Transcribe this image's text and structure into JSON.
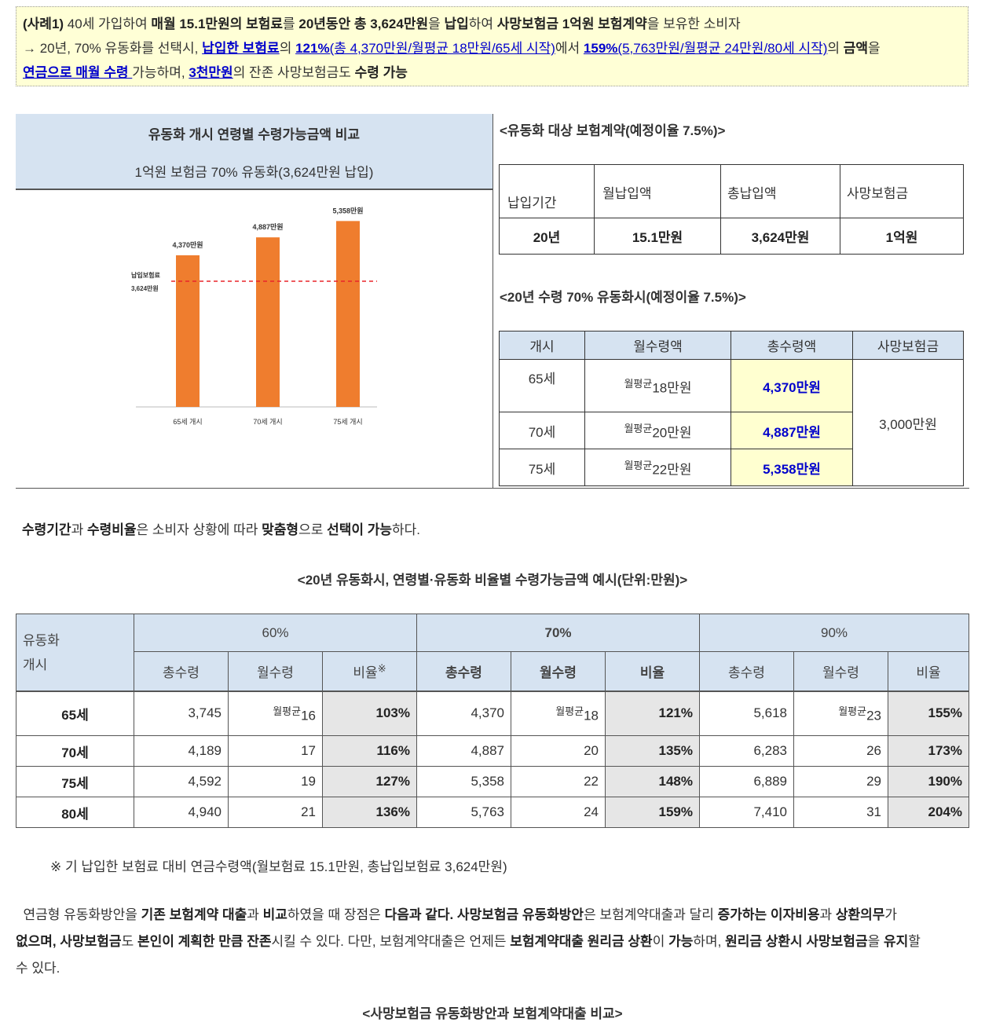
{
  "box": {
    "line1_tag": "(사례1)",
    "line1_a": " 40세 가입하여 ",
    "line1_b": "매월 15.1만원의 보험료",
    "line1_c": "를 ",
    "line1_d": "20년동안 총 3,624만원",
    "line1_e": "을 ",
    "line1_f": "납입",
    "line1_g": "하여 ",
    "line1_h": "사망보험금 1억원 보험계약",
    "line1_i": "을 보유한 소비자",
    "line2_a": "→ 20년, 70% 유동화를 선택시, ",
    "line2_b": "납입한 보험료",
    "line2_c": "의 ",
    "line2_d": "121%",
    "line2_e": "(총 4,370만원/월평균 18만원/65세 시작)",
    "line2_f": "에서 ",
    "line2_g": "159%",
    "line2_h": "(5,763만원/월평균 24만원/80세 시작)",
    "line2_i": "의 ",
    "line2_j": "금액",
    "line2_k": "을",
    "line3_a": "연금으로 매월 수령 ",
    "line3_b": "가능하며, ",
    "line3_c": "3천만원",
    "line3_d": "의 잔존 사망보험금도 ",
    "line3_e": "수령 가능"
  },
  "left_panel": {
    "title": "유동화 개시 연령별 수령가능금액 비교",
    "subtitle": "1억원 보험금 70% 유동화(3,624만원 납입)"
  },
  "chart_data": {
    "type": "bar",
    "categories": [
      "65세 개시",
      "70세 개시",
      "75세 개시"
    ],
    "values": [
      4370,
      4887,
      5358
    ],
    "value_labels": [
      "4,370만원",
      "4,887만원",
      "5,358만원"
    ],
    "reference_line": {
      "value": 3624,
      "label_line1": "납입보험료",
      "label_line2": "3,624만원",
      "color": "#e8252a"
    },
    "bar_color": "#ef7d2e",
    "ylim": [
      0,
      6000
    ]
  },
  "right_panel": {
    "title1": "<유동화 대상 보험계약(예정이율 7.5%)>",
    "t1_headers": [
      "납입기간",
      "월납입액",
      "총납입액",
      "사망보험금"
    ],
    "t1_values": [
      "20년",
      "15.1만원",
      "3,624만원",
      "1억원"
    ],
    "title2": "<20년 수령 70% 유동화시(예정이율 7.5%)>",
    "t2_headers": [
      "개시",
      "월수령액",
      "총수령액",
      "사망보험금"
    ],
    "t2_rows": [
      {
        "age": "65세",
        "prefix": "월평균",
        "monthly": "18만원",
        "total": "4,370만원"
      },
      {
        "age": "70세",
        "prefix": "월평균",
        "monthly": "20만원",
        "total": "4,887만원"
      },
      {
        "age": "75세",
        "prefix": "월평균",
        "monthly": "22만원",
        "total": "5,358만원"
      }
    ],
    "t2_death": "3,000만원"
  },
  "para1": {
    "a": "수령기간",
    "b": "과 ",
    "c": "수령비율",
    "d": "은 소비자 상황에 따라 ",
    "e": "맞춤형",
    "f": "으로 ",
    "g": "선택이 가능",
    "h": "하다."
  },
  "table_title": "<20년 유동화시, 연령별·유동화 비율별 수령가능금액 예시(단위:만원)>",
  "big_table": {
    "corner_line1": "유동화",
    "corner_line2": "개시",
    "groups": [
      "60%",
      "70%",
      "90%"
    ],
    "sub": [
      "총수령",
      "월수령",
      "비율",
      "총수령",
      "월수령",
      "비율",
      "총수령",
      "월수령",
      "비율"
    ],
    "sub_mark": "※",
    "prefix": "월평균",
    "rows": [
      {
        "age": "65세",
        "c": [
          "3,745",
          "16",
          "103%",
          "4,370",
          "18",
          "121%",
          "5,618",
          "23",
          "155%"
        ]
      },
      {
        "age": "70세",
        "c": [
          "4,189",
          "17",
          "116%",
          "4,887",
          "20",
          "135%",
          "6,283",
          "26",
          "173%"
        ]
      },
      {
        "age": "75세",
        "c": [
          "4,592",
          "19",
          "127%",
          "5,358",
          "22",
          "148%",
          "6,889",
          "29",
          "190%"
        ]
      },
      {
        "age": "80세",
        "c": [
          "4,940",
          "21",
          "136%",
          "5,763",
          "24",
          "159%",
          "7,410",
          "31",
          "204%"
        ]
      }
    ]
  },
  "note": "※ 기 납입한 보험료 대비 연금수령액(월보험료 15.1만원, 총납입보험료 3,624만원)",
  "para2": {
    "a": "연금형 유동화방안을 ",
    "b": "기존 보험계약 대출",
    "c": "과 ",
    "d": "비교",
    "e": "하였을 때 장점은 ",
    "f": "다음과 같다. 사망보험금 유동화방안",
    "g": "은 보험계약대출과 달리 ",
    "h": "증가하는 이자비용",
    "i": "과 ",
    "j": "상환의무",
    "k": "가",
    "l": "없으며, 사망보험금",
    "m": "도 ",
    "n": "본인이 계획한 만큼 잔존",
    "o": "시킬 수 있다. 다만, 보험계약대출은 언제든 ",
    "p": "보험계약대출 원리금 상환",
    "q": "이 ",
    "r": "가능",
    "s": "하며, ",
    "t": "원리금 상환시 사망보험금",
    "u": "을 ",
    "v": "유지",
    "w": "할",
    "x": "수 있다."
  },
  "bottom_title": "<사망보험금 유동화방안과 보험계약대출 비교>"
}
